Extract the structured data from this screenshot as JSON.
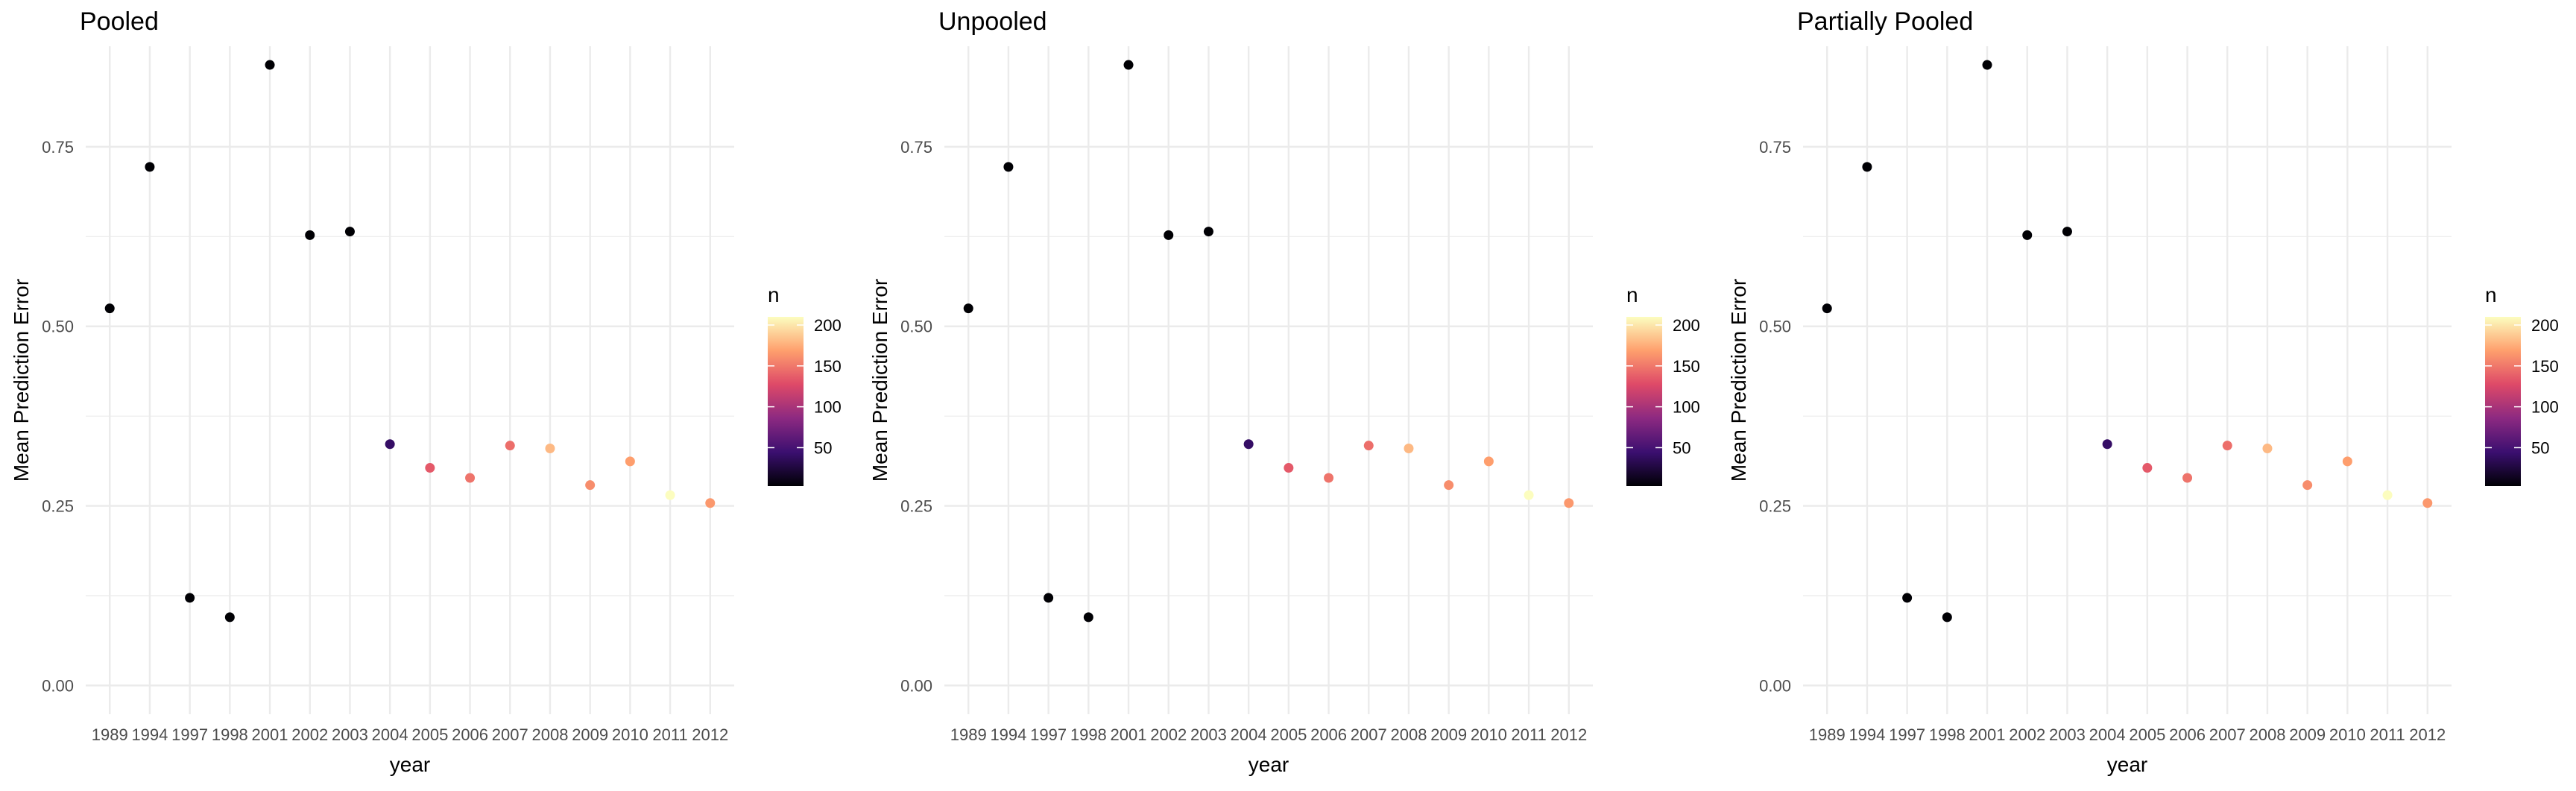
{
  "chart_data": [
    {
      "type": "scatter",
      "title": "Pooled",
      "xlabel": "year",
      "ylabel": "Mean Prediction Error",
      "x_type": "categorical",
      "categories": [
        "1989",
        "1994",
        "1997",
        "1998",
        "2001",
        "2002",
        "2003",
        "2004",
        "2005",
        "2006",
        "2007",
        "2008",
        "2009",
        "2010",
        "2011",
        "2012"
      ],
      "ylim": [
        -0.04,
        0.89
      ],
      "yticks": [
        0.0,
        0.25,
        0.5,
        0.75
      ],
      "ytick_labels": [
        "0.00",
        "0.25",
        "0.50",
        "0.75"
      ],
      "grid": true,
      "legend_position": "right",
      "colorbar": {
        "title": "n",
        "min": 3,
        "max": 210,
        "ticks": [
          50,
          100,
          150,
          200
        ],
        "tick_labels": [
          "50",
          "100",
          "150",
          "200"
        ],
        "palette": "magma"
      },
      "points": [
        {
          "x": "1989",
          "y": 0.525,
          "n": 3
        },
        {
          "x": "1994",
          "y": 0.722,
          "n": 3
        },
        {
          "x": "1997",
          "y": 0.122,
          "n": 3
        },
        {
          "x": "1998",
          "y": 0.095,
          "n": 3
        },
        {
          "x": "2001",
          "y": 0.864,
          "n": 3
        },
        {
          "x": "2002",
          "y": 0.627,
          "n": 3
        },
        {
          "x": "2003",
          "y": 0.632,
          "n": 3
        },
        {
          "x": "2004",
          "y": 0.336,
          "n": 40
        },
        {
          "x": "2005",
          "y": 0.303,
          "n": 135
        },
        {
          "x": "2006",
          "y": 0.289,
          "n": 148
        },
        {
          "x": "2007",
          "y": 0.334,
          "n": 145
        },
        {
          "x": "2008",
          "y": 0.33,
          "n": 180
        },
        {
          "x": "2009",
          "y": 0.279,
          "n": 160
        },
        {
          "x": "2010",
          "y": 0.312,
          "n": 168
        },
        {
          "x": "2011",
          "y": 0.265,
          "n": 210
        },
        {
          "x": "2012",
          "y": 0.254,
          "n": 165
        }
      ]
    },
    {
      "type": "scatter",
      "title": "Unpooled",
      "xlabel": "year",
      "ylabel": "Mean Prediction Error",
      "x_type": "categorical",
      "categories": [
        "1989",
        "1994",
        "1997",
        "1998",
        "2001",
        "2002",
        "2003",
        "2004",
        "2005",
        "2006",
        "2007",
        "2008",
        "2009",
        "2010",
        "2011",
        "2012"
      ],
      "ylim": [
        -0.04,
        0.89
      ],
      "yticks": [
        0.0,
        0.25,
        0.5,
        0.75
      ],
      "ytick_labels": [
        "0.00",
        "0.25",
        "0.50",
        "0.75"
      ],
      "grid": true,
      "legend_position": "right",
      "colorbar": {
        "title": "n",
        "min": 3,
        "max": 210,
        "ticks": [
          50,
          100,
          150,
          200
        ],
        "tick_labels": [
          "50",
          "100",
          "150",
          "200"
        ],
        "palette": "magma"
      },
      "points": [
        {
          "x": "1989",
          "y": 0.525,
          "n": 3
        },
        {
          "x": "1994",
          "y": 0.722,
          "n": 3
        },
        {
          "x": "1997",
          "y": 0.122,
          "n": 3
        },
        {
          "x": "1998",
          "y": 0.095,
          "n": 3
        },
        {
          "x": "2001",
          "y": 0.864,
          "n": 3
        },
        {
          "x": "2002",
          "y": 0.627,
          "n": 3
        },
        {
          "x": "2003",
          "y": 0.632,
          "n": 3
        },
        {
          "x": "2004",
          "y": 0.336,
          "n": 40
        },
        {
          "x": "2005",
          "y": 0.303,
          "n": 135
        },
        {
          "x": "2006",
          "y": 0.289,
          "n": 148
        },
        {
          "x": "2007",
          "y": 0.334,
          "n": 145
        },
        {
          "x": "2008",
          "y": 0.33,
          "n": 180
        },
        {
          "x": "2009",
          "y": 0.279,
          "n": 160
        },
        {
          "x": "2010",
          "y": 0.312,
          "n": 168
        },
        {
          "x": "2011",
          "y": 0.265,
          "n": 210
        },
        {
          "x": "2012",
          "y": 0.254,
          "n": 165
        }
      ]
    },
    {
      "type": "scatter",
      "title": "Partially Pooled",
      "xlabel": "year",
      "ylabel": "Mean Prediction Error",
      "x_type": "categorical",
      "categories": [
        "1989",
        "1994",
        "1997",
        "1998",
        "2001",
        "2002",
        "2003",
        "2004",
        "2005",
        "2006",
        "2007",
        "2008",
        "2009",
        "2010",
        "2011",
        "2012"
      ],
      "ylim": [
        -0.04,
        0.89
      ],
      "yticks": [
        0.0,
        0.25,
        0.5,
        0.75
      ],
      "ytick_labels": [
        "0.00",
        "0.25",
        "0.50",
        "0.75"
      ],
      "grid": true,
      "legend_position": "right",
      "colorbar": {
        "title": "n",
        "min": 3,
        "max": 210,
        "ticks": [
          50,
          100,
          150,
          200
        ],
        "tick_labels": [
          "50",
          "100",
          "150",
          "200"
        ],
        "palette": "magma"
      },
      "points": [
        {
          "x": "1989",
          "y": 0.525,
          "n": 3
        },
        {
          "x": "1994",
          "y": 0.722,
          "n": 3
        },
        {
          "x": "1997",
          "y": 0.122,
          "n": 3
        },
        {
          "x": "1998",
          "y": 0.095,
          "n": 3
        },
        {
          "x": "2001",
          "y": 0.864,
          "n": 3
        },
        {
          "x": "2002",
          "y": 0.627,
          "n": 3
        },
        {
          "x": "2003",
          "y": 0.632,
          "n": 3
        },
        {
          "x": "2004",
          "y": 0.336,
          "n": 40
        },
        {
          "x": "2005",
          "y": 0.303,
          "n": 135
        },
        {
          "x": "2006",
          "y": 0.289,
          "n": 148
        },
        {
          "x": "2007",
          "y": 0.334,
          "n": 145
        },
        {
          "x": "2008",
          "y": 0.33,
          "n": 180
        },
        {
          "x": "2009",
          "y": 0.279,
          "n": 160
        },
        {
          "x": "2010",
          "y": 0.312,
          "n": 168
        },
        {
          "x": "2011",
          "y": 0.265,
          "n": 210
        },
        {
          "x": "2012",
          "y": 0.254,
          "n": 165
        }
      ]
    }
  ],
  "colors": {
    "background": "#ffffff",
    "gridline": "#ebebeb",
    "axis_text": "#4d4d4d",
    "title_text": "#000000",
    "magma_stops": [
      "#000004",
      "#3b0f70",
      "#8c2981",
      "#de4968",
      "#fe9f6d",
      "#fcfdbf"
    ]
  }
}
